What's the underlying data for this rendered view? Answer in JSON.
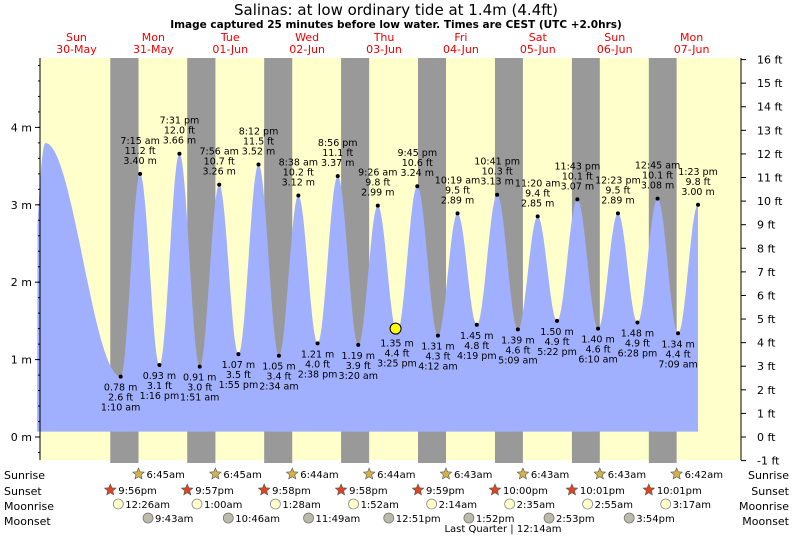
{
  "title": "Salinas: at low  ordinary tide at 1.4m (4.4ft)",
  "subtitle": "Image captured 25 minutes before low water. Times are CEST (UTC +2.0hrs)",
  "colors": {
    "day_bg": "#ffffcc",
    "night_band": "#999999",
    "tide_fill": "#a0b0ff",
    "date_header": "#ee0000",
    "current_marker": "#ffff00"
  },
  "days": [
    {
      "dow": "Sun",
      "date": "30-May"
    },
    {
      "dow": "Mon",
      "date": "31-May"
    },
    {
      "dow": "Tue",
      "date": "01-Jun"
    },
    {
      "dow": "Wed",
      "date": "02-Jun"
    },
    {
      "dow": "Thu",
      "date": "03-Jun"
    },
    {
      "dow": "Fri",
      "date": "04-Jun"
    },
    {
      "dow": "Sat",
      "date": "05-Jun"
    },
    {
      "dow": "Sun",
      "date": "06-Jun"
    },
    {
      "dow": "Mon",
      "date": "07-Jun"
    }
  ],
  "left_axis": {
    "ticks": [
      "0 m",
      "1 m",
      "2 m",
      "3 m",
      "4 m"
    ]
  },
  "right_axis": {
    "ticks": [
      "-1 ft",
      "0 ft",
      "1 ft",
      "2 ft",
      "3 ft",
      "4 ft",
      "5 ft",
      "6 ft",
      "7 ft",
      "8 ft",
      "9 ft",
      "10 ft",
      "11 ft",
      "12 ft",
      "13 ft",
      "14 ft",
      "15 ft",
      "16 ft"
    ]
  },
  "chart_data": {
    "type": "area",
    "ylabel_left": "",
    "ylim_m": [
      -0.3,
      4.9
    ],
    "x_unit": "hours since start of Sun 30-May (CEST)",
    "current_position": {
      "time": "03-Jun 14:59",
      "x": 110.98,
      "value_m": 1.4
    },
    "points": [
      {
        "x": 1.67,
        "m": 3.8,
        "label": false
      },
      {
        "x": 25.17,
        "m": 0.78,
        "time": "1:10 am",
        "ft": "2.6 ft",
        "m_label": "0.78 m",
        "kind": "low"
      },
      {
        "x": 31.25,
        "m": 3.4,
        "time": "7:15 am",
        "ft": "11.2 ft",
        "m_label": "3.40 m",
        "kind": "high"
      },
      {
        "x": 37.27,
        "m": 0.93,
        "time": "1:16 pm",
        "ft": "3.1 ft",
        "m_label": "0.93 m",
        "kind": "low"
      },
      {
        "x": 43.52,
        "m": 3.66,
        "time": "7:31 pm",
        "ft": "12.0 ft",
        "m_label": "3.66 m",
        "kind": "high"
      },
      {
        "x": 49.85,
        "m": 0.91,
        "time": "1:51 am",
        "ft": "3.0 ft",
        "m_label": "0.91 m",
        "kind": "low"
      },
      {
        "x": 55.93,
        "m": 3.26,
        "time": "7:56 am",
        "ft": "10.7 ft",
        "m_label": "3.26 m",
        "kind": "high"
      },
      {
        "x": 61.92,
        "m": 1.07,
        "time": "1:55 pm",
        "ft": "3.5 ft",
        "m_label": "1.07 m",
        "kind": "low"
      },
      {
        "x": 68.2,
        "m": 3.52,
        "time": "8:12 pm",
        "ft": "11.5 ft",
        "m_label": "3.52 m",
        "kind": "high"
      },
      {
        "x": 74.57,
        "m": 1.05,
        "time": "2:34 am",
        "ft": "3.4 ft",
        "m_label": "1.05 m",
        "kind": "low"
      },
      {
        "x": 80.63,
        "m": 3.12,
        "time": "8:38 am",
        "ft": "10.2 ft",
        "m_label": "3.12 m",
        "kind": "high"
      },
      {
        "x": 86.63,
        "m": 1.21,
        "time": "2:38 pm",
        "ft": "4.0 ft",
        "m_label": "1.21 m",
        "kind": "low"
      },
      {
        "x": 92.93,
        "m": 3.37,
        "time": "8:56 pm",
        "ft": "11.1 ft",
        "m_label": "3.37 m",
        "kind": "high"
      },
      {
        "x": 99.33,
        "m": 1.19,
        "time": "3:20 am",
        "ft": "3.9 ft",
        "m_label": "1.19 m",
        "kind": "low"
      },
      {
        "x": 105.43,
        "m": 2.99,
        "time": "9:26 am",
        "ft": "9.8 ft",
        "m_label": "2.99 m",
        "kind": "high"
      },
      {
        "x": 111.42,
        "m": 1.35,
        "time": "3:25 pm",
        "ft": "4.4 ft",
        "m_label": "1.35 m",
        "kind": "low"
      },
      {
        "x": 117.75,
        "m": 3.24,
        "time": "9:45 pm",
        "ft": "10.6 ft",
        "m_label": "3.24 m",
        "kind": "high"
      },
      {
        "x": 124.2,
        "m": 1.31,
        "time": "4:12 am",
        "ft": "4.3 ft",
        "m_label": "1.31 m",
        "kind": "low"
      },
      {
        "x": 130.32,
        "m": 2.89,
        "time": "10:19 am",
        "ft": "9.5 ft",
        "m_label": "2.89 m",
        "kind": "high"
      },
      {
        "x": 136.32,
        "m": 1.45,
        "time": "4:19 pm",
        "ft": "4.8 ft",
        "m_label": "1.45 m",
        "kind": "low"
      },
      {
        "x": 142.68,
        "m": 3.13,
        "time": "10:41 pm",
        "ft": "10.3 ft",
        "m_label": "3.13 m",
        "kind": "high"
      },
      {
        "x": 149.15,
        "m": 1.39,
        "time": "5:09 am",
        "ft": "4.6 ft",
        "m_label": "1.39 m",
        "kind": "low"
      },
      {
        "x": 155.33,
        "m": 2.85,
        "time": "11:20 am",
        "ft": "9.4 ft",
        "m_label": "2.85 m",
        "kind": "high"
      },
      {
        "x": 161.37,
        "m": 1.5,
        "time": "5:22 pm",
        "ft": "4.9 ft",
        "m_label": "1.50 m",
        "kind": "low"
      },
      {
        "x": 167.72,
        "m": 3.07,
        "time": "11:43 pm",
        "ft": "10.1 ft",
        "m_label": "3.07 m",
        "kind": "high"
      },
      {
        "x": 174.17,
        "m": 1.4,
        "time": "6:10 am",
        "ft": "4.6 ft",
        "m_label": "1.40 m",
        "kind": "low"
      },
      {
        "x": 180.38,
        "m": 2.89,
        "time": "12:23 pm",
        "ft": "9.5 ft",
        "m_label": "2.89 m",
        "kind": "high"
      },
      {
        "x": 186.47,
        "m": 1.48,
        "time": "6:28 pm",
        "ft": "4.9 ft",
        "m_label": "1.48 m",
        "kind": "low"
      },
      {
        "x": 192.75,
        "m": 3.08,
        "time": "12:45 am",
        "ft": "10.1 ft",
        "m_label": "3.08 m",
        "kind": "high"
      },
      {
        "x": 199.15,
        "m": 1.34,
        "time": "7:09 am",
        "ft": "4.4 ft",
        "m_label": "1.34 m",
        "kind": "low"
      },
      {
        "x": 205.38,
        "m": 3.0,
        "time": "1:23 pm",
        "ft": "9.8 ft",
        "m_label": "3.00 m",
        "kind": "high"
      }
    ],
    "nights": [
      {
        "start": 21.93,
        "end": 30.75
      },
      {
        "start": 45.95,
        "end": 54.75
      },
      {
        "start": 69.97,
        "end": 78.73
      },
      {
        "start": 93.97,
        "end": 102.73
      },
      {
        "start": 117.98,
        "end": 126.72
      },
      {
        "start": 142.0,
        "end": 150.72
      },
      {
        "start": 166.02,
        "end": 174.72
      },
      {
        "start": 190.02,
        "end": 198.7
      }
    ]
  },
  "almanac": {
    "row_labels": {
      "sunrise": "Sunrise",
      "sunset": "Sunset",
      "moonrise": "Moonrise",
      "moonset": "Moonset"
    },
    "sunrise": [
      {
        "x": 30.75,
        "text": "6:45am"
      },
      {
        "x": 54.75,
        "text": "6:45am"
      },
      {
        "x": 78.73,
        "text": "6:44am"
      },
      {
        "x": 102.73,
        "text": "6:44am"
      },
      {
        "x": 126.72,
        "text": "6:43am"
      },
      {
        "x": 150.72,
        "text": "6:43am"
      },
      {
        "x": 174.72,
        "text": "6:43am"
      },
      {
        "x": 198.7,
        "text": "6:42am"
      }
    ],
    "sunset": [
      {
        "x": 21.93,
        "text": "9:56pm"
      },
      {
        "x": 45.95,
        "text": "9:57pm"
      },
      {
        "x": 69.97,
        "text": "9:58pm"
      },
      {
        "x": 93.97,
        "text": "9:58pm"
      },
      {
        "x": 117.98,
        "text": "9:59pm"
      },
      {
        "x": 142.0,
        "text": "10:00pm"
      },
      {
        "x": 166.02,
        "text": "10:01pm"
      },
      {
        "x": 190.02,
        "text": "10:01pm"
      }
    ],
    "moonrise": [
      {
        "x": 24.43,
        "text": "12:26am"
      },
      {
        "x": 49.0,
        "text": "1:00am"
      },
      {
        "x": 73.47,
        "text": "1:28am"
      },
      {
        "x": 97.87,
        "text": "1:52am"
      },
      {
        "x": 122.23,
        "text": "2:14am"
      },
      {
        "x": 146.58,
        "text": "2:35am"
      },
      {
        "x": 170.92,
        "text": "2:55am"
      },
      {
        "x": 195.28,
        "text": "3:17am"
      }
    ],
    "moonset": [
      {
        "x": 33.72,
        "text": "9:43am"
      },
      {
        "x": 58.77,
        "text": "10:46am"
      },
      {
        "x": 83.82,
        "text": "11:49am"
      },
      {
        "x": 108.85,
        "text": "12:51pm"
      },
      {
        "x": 133.87,
        "text": "1:52pm"
      },
      {
        "x": 158.88,
        "text": "2:53pm"
      },
      {
        "x": 183.9,
        "text": "3:54pm"
      }
    ],
    "moon_phase": "Last Quarter | 12:14am"
  }
}
